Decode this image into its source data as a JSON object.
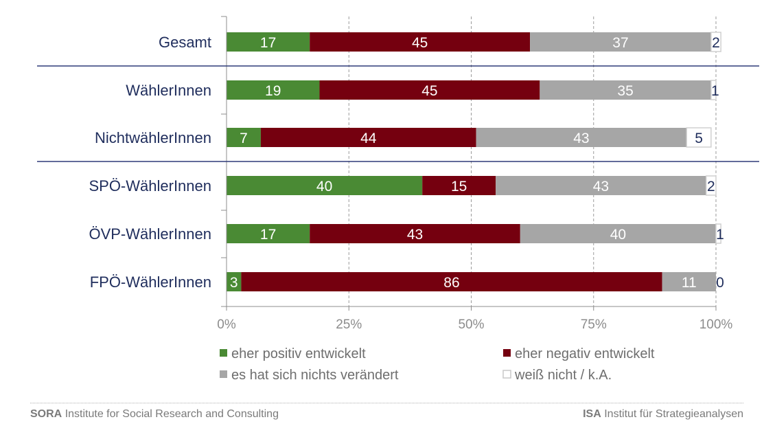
{
  "chart_data": {
    "type": "bar",
    "orientation": "horizontal",
    "stacked": true,
    "categories": [
      "Gesamt",
      "WählerInnen",
      "NichtwählerInnen",
      "SPÖ-WählerInnen",
      "ÖVP-WählerInnen",
      "FPÖ-WählerInnen"
    ],
    "series": [
      {
        "name": "eher positiv entwickelt",
        "color": "#4a8a34",
        "values": [
          17,
          19,
          7,
          40,
          17,
          3
        ]
      },
      {
        "name": "eher negativ entwickelt",
        "color": "#75000f",
        "values": [
          45,
          45,
          44,
          15,
          43,
          86
        ]
      },
      {
        "name": "es hat sich nichts verändert",
        "color": "#a6a6a6",
        "values": [
          37,
          35,
          43,
          43,
          40,
          11
        ]
      },
      {
        "name": "weiß nicht / k.A.",
        "color": "#ffffff",
        "values": [
          2,
          1,
          5,
          2,
          1,
          0
        ]
      }
    ],
    "x_ticks": [
      "0%",
      "25%",
      "50%",
      "75%",
      "100%"
    ],
    "xlim": [
      0,
      100
    ],
    "grid": true,
    "legend_position": "bottom"
  },
  "footer": {
    "left_bold": "SORA",
    "left_text": "Institute for Social Research and Consulting",
    "right_bold": "ISA",
    "right_text": "Institut für Strategieanalysen"
  },
  "colors": {
    "label_navy": "#1f2d5c",
    "separator": "#2e3a78",
    "axis_gray": "#8c8c8c"
  }
}
